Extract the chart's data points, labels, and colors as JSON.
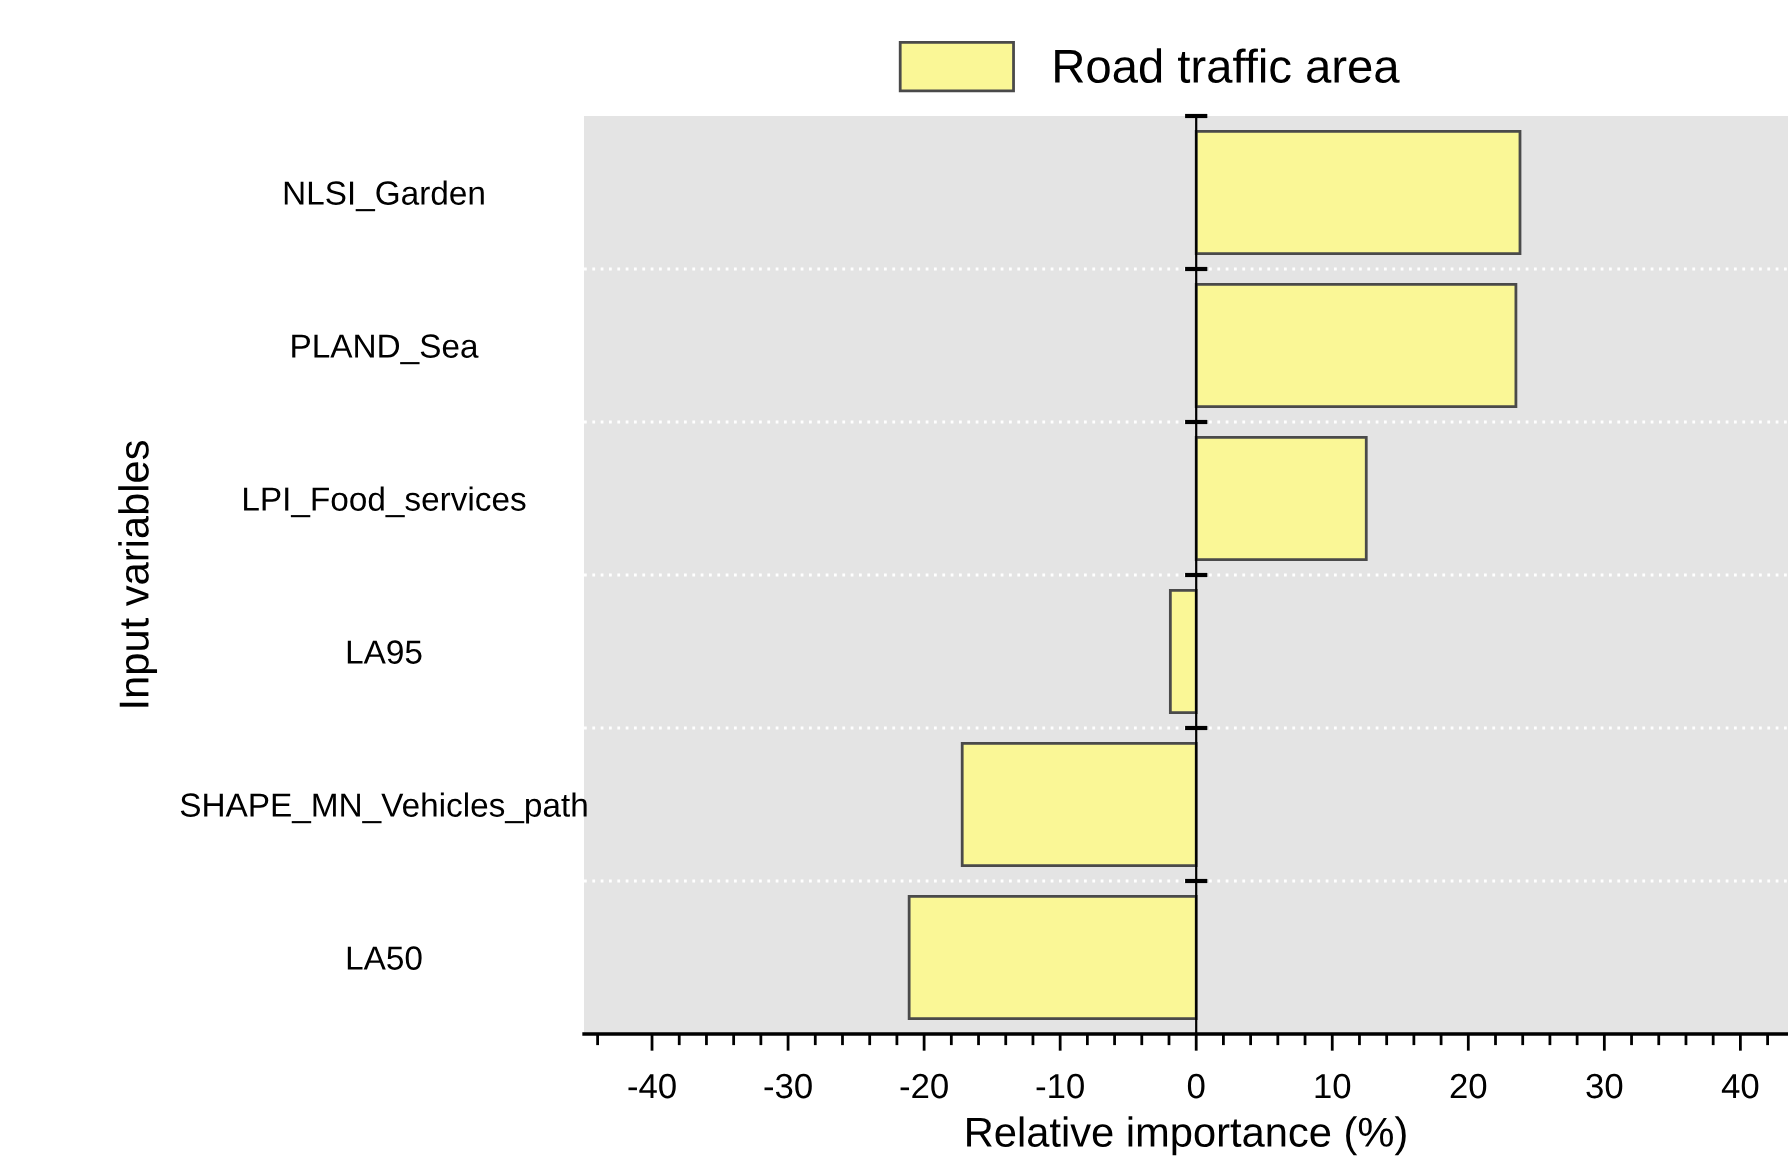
{
  "chart_data": {
    "type": "bar",
    "orientation": "horizontal",
    "categories": [
      "NLSI_Garden",
      "PLAND_Sea",
      "LPI_Food_services",
      "LA95",
      "SHAPE_MN_Vehicles_path",
      "LA50"
    ],
    "series": [
      {
        "name": "Road traffic area",
        "color": "#faf796",
        "values": [
          23.8,
          23.5,
          12.5,
          -1.9,
          -17.2,
          -21.1
        ]
      }
    ],
    "xlabel": "Relative importance (%)",
    "ylabel": "Input variables",
    "xlim": [
      -45,
      43.5
    ],
    "xticks": [
      {
        "value": -44,
        "label": null
      },
      -40,
      {
        "value": -38,
        "label": null
      },
      {
        "value": -36,
        "label": null
      },
      {
        "value": -34,
        "label": null
      },
      {
        "value": -32,
        "label": null
      },
      -30,
      {
        "value": -28,
        "label": null
      },
      {
        "value": -26,
        "label": null
      },
      {
        "value": -24,
        "label": null
      },
      {
        "value": -22,
        "label": null
      },
      -20,
      {
        "value": -18,
        "label": null
      },
      {
        "value": -16,
        "label": null
      },
      {
        "value": -14,
        "label": null
      },
      {
        "value": -12,
        "label": null
      },
      -10,
      {
        "value": -8,
        "label": null
      },
      {
        "value": -6,
        "label": null
      },
      {
        "value": -4,
        "label": null
      },
      {
        "value": -2,
        "label": null
      },
      0,
      {
        "value": 2,
        "label": null
      },
      {
        "value": 4,
        "label": null
      },
      {
        "value": 6,
        "label": null
      },
      {
        "value": 8,
        "label": null
      },
      10,
      {
        "value": 12,
        "label": null
      },
      {
        "value": 14,
        "label": null
      },
      {
        "value": 16,
        "label": null
      },
      {
        "value": 18,
        "label": null
      },
      20,
      {
        "value": 22,
        "label": null
      },
      {
        "value": 24,
        "label": null
      },
      {
        "value": 26,
        "label": null
      },
      {
        "value": 28,
        "label": null
      },
      30,
      {
        "value": 32,
        "label": null
      },
      {
        "value": 34,
        "label": null
      },
      {
        "value": 36,
        "label": null
      },
      {
        "value": 38,
        "label": null
      },
      40,
      {
        "value": 42,
        "label": null
      }
    ],
    "grid": "y",
    "legend": "top"
  }
}
